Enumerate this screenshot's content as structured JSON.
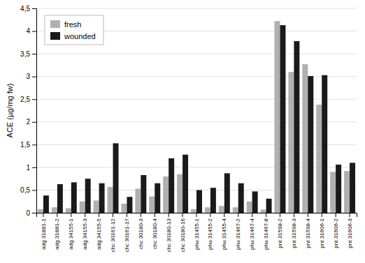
{
  "chart_data": {
    "type": "bar",
    "y_label": "ACE (µg/mg fw)",
    "categories": [
      "adg 31881-1",
      "adg 31881-2",
      "adg 34155-1",
      "adg 34155-3",
      "adg 34155-5",
      "chc 30161-12",
      "chc 30161-17",
      "chc 30180-3",
      "chc 30180-4",
      "chc 30180-13",
      "chc 30180-16",
      "phu 31455-1",
      "phu 31455-2",
      "phu 31455-4",
      "phu 31467-2",
      "phu 31467-4",
      "phu 31467-8",
      "pnt 31598-2",
      "pnt 31598-3",
      "pnt 31598-4",
      "pnt 31606-1",
      "pnt 31606-2",
      "pnt 31606-3"
    ],
    "series": [
      {
        "name": "fresh",
        "color": "#b0b0b0",
        "values": [
          0.08,
          0.12,
          0.1,
          0.25,
          0.27,
          0.57,
          0.2,
          0.53,
          0.36,
          0.8,
          0.85,
          0.08,
          0.12,
          0.15,
          0.12,
          0.25,
          0.07,
          4.22,
          3.1,
          3.27,
          2.38,
          0.9,
          0.92
        ]
      },
      {
        "name": "wounded",
        "color": "#1a1a1a",
        "values": [
          0.38,
          0.63,
          0.67,
          0.75,
          0.65,
          1.53,
          0.35,
          0.83,
          0.65,
          1.2,
          1.28,
          0.5,
          0.55,
          0.87,
          0.65,
          0.47,
          0.31,
          4.13,
          3.78,
          3.01,
          3.03,
          1.06,
          1.1
        ]
      }
    ],
    "ylim": [
      0,
      4.5
    ],
    "yticks": [
      0,
      {
        "value": 0.5,
        "label": "0,5"
      },
      1,
      {
        "value": 1.5,
        "label": "1,5"
      },
      2,
      {
        "value": 2.5,
        "label": "2,5"
      },
      3,
      {
        "value": 3.5,
        "label": "3,5"
      },
      4,
      {
        "value": 4.5,
        "label": "4,5"
      }
    ],
    "grid": true,
    "legend": "upper-left"
  }
}
